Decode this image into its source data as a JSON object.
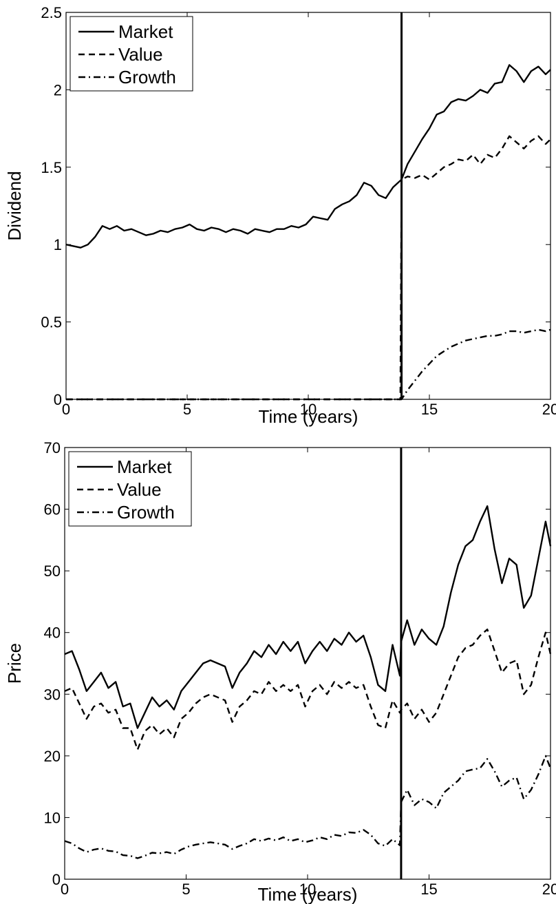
{
  "chart_data": [
    {
      "type": "line",
      "xlabel": "Time (years)",
      "ylabel": "Dividend",
      "xlim": [
        0,
        20
      ],
      "ylim": [
        0,
        2.5
      ],
      "xticks": [
        0,
        5,
        10,
        15,
        20
      ],
      "xtick_labels": [
        "0",
        "5",
        "10",
        "15",
        "20"
      ],
      "yticks": [
        0,
        0.5,
        1,
        1.5,
        2,
        2.5
      ],
      "ytick_labels": [
        "0",
        "0.5",
        "1",
        "1.5",
        "2",
        "2.5"
      ],
      "grid": false,
      "legend_position": "top-left",
      "vertical_line_x": 13.85,
      "series": [
        {
          "name": "Market",
          "style": "solid",
          "x": [
            0,
            0.3,
            0.6,
            0.9,
            1.2,
            1.5,
            1.8,
            2.1,
            2.4,
            2.7,
            3.0,
            3.3,
            3.6,
            3.9,
            4.2,
            4.5,
            4.8,
            5.1,
            5.4,
            5.7,
            6.0,
            6.3,
            6.6,
            6.9,
            7.2,
            7.5,
            7.8,
            8.1,
            8.4,
            8.7,
            9.0,
            9.3,
            9.6,
            9.9,
            10.2,
            10.5,
            10.8,
            11.1,
            11.4,
            11.7,
            12.0,
            12.3,
            12.6,
            12.9,
            13.2,
            13.5,
            13.85,
            14.1,
            14.4,
            14.7,
            15.0,
            15.3,
            15.6,
            15.9,
            16.2,
            16.5,
            16.8,
            17.1,
            17.4,
            17.7,
            18.0,
            18.3,
            18.6,
            18.9,
            19.2,
            19.5,
            19.8,
            20.0
          ],
          "y": [
            1.0,
            0.99,
            0.98,
            1.0,
            1.05,
            1.12,
            1.1,
            1.12,
            1.09,
            1.1,
            1.08,
            1.06,
            1.07,
            1.09,
            1.08,
            1.1,
            1.11,
            1.13,
            1.1,
            1.09,
            1.11,
            1.1,
            1.08,
            1.1,
            1.09,
            1.07,
            1.1,
            1.09,
            1.08,
            1.1,
            1.1,
            1.12,
            1.11,
            1.13,
            1.18,
            1.17,
            1.16,
            1.23,
            1.26,
            1.28,
            1.32,
            1.4,
            1.38,
            1.32,
            1.3,
            1.37,
            1.42,
            1.52,
            1.6,
            1.68,
            1.75,
            1.84,
            1.86,
            1.92,
            1.94,
            1.93,
            1.96,
            2.0,
            1.98,
            2.04,
            2.05,
            2.16,
            2.12,
            2.05,
            2.12,
            2.15,
            2.1,
            2.13
          ]
        },
        {
          "name": "Value",
          "style": "dashed",
          "x": [
            0,
            13.8,
            13.85,
            14.1,
            14.4,
            14.7,
            15.0,
            15.3,
            15.6,
            15.9,
            16.2,
            16.5,
            16.8,
            17.1,
            17.4,
            17.7,
            18.0,
            18.3,
            18.6,
            18.9,
            19.2,
            19.5,
            19.8,
            20.0
          ],
          "y": [
            0,
            0,
            1.42,
            1.44,
            1.43,
            1.45,
            1.42,
            1.46,
            1.5,
            1.52,
            1.55,
            1.54,
            1.58,
            1.52,
            1.58,
            1.56,
            1.62,
            1.7,
            1.66,
            1.62,
            1.67,
            1.7,
            1.65,
            1.68
          ]
        },
        {
          "name": "Growth",
          "style": "dashdot",
          "x": [
            0,
            13.85,
            14.1,
            14.4,
            14.7,
            15.0,
            15.3,
            15.6,
            15.9,
            16.2,
            16.5,
            16.8,
            17.1,
            17.4,
            17.7,
            18.0,
            18.3,
            18.6,
            18.9,
            19.2,
            19.5,
            19.8,
            20.0
          ],
          "y": [
            0,
            0,
            0.06,
            0.12,
            0.18,
            0.23,
            0.28,
            0.31,
            0.34,
            0.36,
            0.38,
            0.39,
            0.4,
            0.41,
            0.41,
            0.42,
            0.44,
            0.44,
            0.43,
            0.44,
            0.45,
            0.44,
            0.45
          ]
        }
      ]
    },
    {
      "type": "line",
      "xlabel": "Time (years)",
      "ylabel": "Price",
      "xlim": [
        0,
        20
      ],
      "ylim": [
        0,
        70
      ],
      "xticks": [
        0,
        5,
        10,
        15,
        20
      ],
      "xtick_labels": [
        "0",
        "5",
        "10",
        "15",
        "20"
      ],
      "yticks": [
        0,
        10,
        20,
        30,
        40,
        50,
        60,
        70
      ],
      "ytick_labels": [
        "0",
        "10",
        "20",
        "30",
        "40",
        "50",
        "60",
        "70"
      ],
      "grid": false,
      "legend_position": "top-left",
      "vertical_line_x": 13.85,
      "series": [
        {
          "name": "Market",
          "style": "solid",
          "x": [
            0,
            0.3,
            0.6,
            0.9,
            1.2,
            1.5,
            1.8,
            2.1,
            2.4,
            2.7,
            3.0,
            3.3,
            3.6,
            3.9,
            4.2,
            4.5,
            4.8,
            5.1,
            5.4,
            5.7,
            6.0,
            6.3,
            6.6,
            6.9,
            7.2,
            7.5,
            7.8,
            8.1,
            8.4,
            8.7,
            9.0,
            9.3,
            9.6,
            9.9,
            10.2,
            10.5,
            10.8,
            11.1,
            11.4,
            11.7,
            12.0,
            12.3,
            12.6,
            12.9,
            13.2,
            13.5,
            13.8,
            13.85,
            14.1,
            14.4,
            14.7,
            15.0,
            15.3,
            15.6,
            15.9,
            16.2,
            16.5,
            16.8,
            17.1,
            17.4,
            17.7,
            18.0,
            18.3,
            18.6,
            18.9,
            19.2,
            19.5,
            19.8,
            20.0
          ],
          "y": [
            36.5,
            37.0,
            34.0,
            30.5,
            32.0,
            33.5,
            31.0,
            32.0,
            28.0,
            28.5,
            24.5,
            27.0,
            29.5,
            28.0,
            29.0,
            27.5,
            30.5,
            32.0,
            33.5,
            35.0,
            35.5,
            35.0,
            34.5,
            31.0,
            33.5,
            35.0,
            37.0,
            36.0,
            38.0,
            36.5,
            38.5,
            37.0,
            38.5,
            35.0,
            37.0,
            38.5,
            37.0,
            39.0,
            38.0,
            40.0,
            38.5,
            39.5,
            36.0,
            31.5,
            30.5,
            38.0,
            33.0,
            38.5,
            42.0,
            38.0,
            40.5,
            39.0,
            38.0,
            41.0,
            46.5,
            51.0,
            54.0,
            55.0,
            58.0,
            60.5,
            53.5,
            48.0,
            52.0,
            51.0,
            44.0,
            46.0,
            52.0,
            58.0,
            54.0
          ]
        },
        {
          "name": "Value",
          "style": "dashed",
          "x": [
            0,
            0.3,
            0.6,
            0.9,
            1.2,
            1.5,
            1.8,
            2.1,
            2.4,
            2.7,
            3.0,
            3.3,
            3.6,
            3.9,
            4.2,
            4.5,
            4.8,
            5.1,
            5.4,
            5.7,
            6.0,
            6.3,
            6.6,
            6.9,
            7.2,
            7.5,
            7.8,
            8.1,
            8.4,
            8.7,
            9.0,
            9.3,
            9.6,
            9.9,
            10.2,
            10.5,
            10.8,
            11.1,
            11.4,
            11.7,
            12.0,
            12.3,
            12.6,
            12.9,
            13.2,
            13.5,
            13.8,
            13.85,
            14.1,
            14.4,
            14.7,
            15.0,
            15.3,
            15.6,
            15.9,
            16.2,
            16.5,
            16.8,
            17.1,
            17.4,
            17.7,
            18.0,
            18.3,
            18.6,
            18.9,
            19.2,
            19.5,
            19.8,
            20.0
          ],
          "y": [
            30.5,
            31.0,
            28.5,
            26.0,
            28.0,
            28.5,
            27.0,
            27.5,
            24.5,
            24.5,
            21.0,
            24.0,
            25.0,
            23.5,
            24.5,
            23.0,
            26.0,
            27.0,
            28.5,
            29.5,
            30.0,
            29.5,
            29.0,
            25.5,
            28.0,
            29.0,
            30.5,
            30.0,
            32.0,
            30.5,
            31.5,
            30.5,
            31.5,
            28.0,
            30.5,
            31.5,
            30.0,
            32.0,
            31.0,
            32.0,
            31.0,
            31.5,
            28.0,
            25.0,
            24.5,
            29.0,
            27.0,
            27.5,
            28.5,
            26.0,
            27.5,
            25.5,
            27.0,
            30.0,
            33.0,
            36.0,
            37.5,
            38.0,
            39.5,
            40.5,
            37.0,
            33.5,
            35.0,
            35.5,
            30.0,
            31.5,
            36.0,
            40.0,
            36.5
          ]
        },
        {
          "name": "Growth",
          "style": "dashdot",
          "x": [
            0,
            0.3,
            0.6,
            0.9,
            1.2,
            1.5,
            1.8,
            2.1,
            2.4,
            2.7,
            3.0,
            3.3,
            3.6,
            3.9,
            4.2,
            4.5,
            4.8,
            5.1,
            5.4,
            5.7,
            6.0,
            6.3,
            6.6,
            6.9,
            7.2,
            7.5,
            7.8,
            8.1,
            8.4,
            8.7,
            9.0,
            9.3,
            9.6,
            9.9,
            10.2,
            10.5,
            10.8,
            11.1,
            11.4,
            11.7,
            12.0,
            12.3,
            12.6,
            12.9,
            13.2,
            13.5,
            13.8,
            13.85,
            14.1,
            14.4,
            14.7,
            15.0,
            15.3,
            15.6,
            15.9,
            16.2,
            16.5,
            16.8,
            17.1,
            17.4,
            17.7,
            18.0,
            18.3,
            18.6,
            18.9,
            19.2,
            19.5,
            19.8,
            20.0
          ],
          "y": [
            6.2,
            5.8,
            5.0,
            4.4,
            4.8,
            5.0,
            4.6,
            4.5,
            3.9,
            3.8,
            3.4,
            3.8,
            4.3,
            4.2,
            4.4,
            4.1,
            4.8,
            5.3,
            5.6,
            5.8,
            6.0,
            5.8,
            5.6,
            4.9,
            5.4,
            5.8,
            6.5,
            6.2,
            6.6,
            6.3,
            6.8,
            6.2,
            6.5,
            6.0,
            6.3,
            6.8,
            6.5,
            7.2,
            7.0,
            7.6,
            7.5,
            8.0,
            7.2,
            5.8,
            5.4,
            6.5,
            5.5,
            12.5,
            14.5,
            12.0,
            13.0,
            12.5,
            11.5,
            14.0,
            15.0,
            16.0,
            17.5,
            17.8,
            18.0,
            19.5,
            17.5,
            15.0,
            16.0,
            16.5,
            13.0,
            14.5,
            17.0,
            20.0,
            18.0
          ]
        }
      ]
    }
  ]
}
